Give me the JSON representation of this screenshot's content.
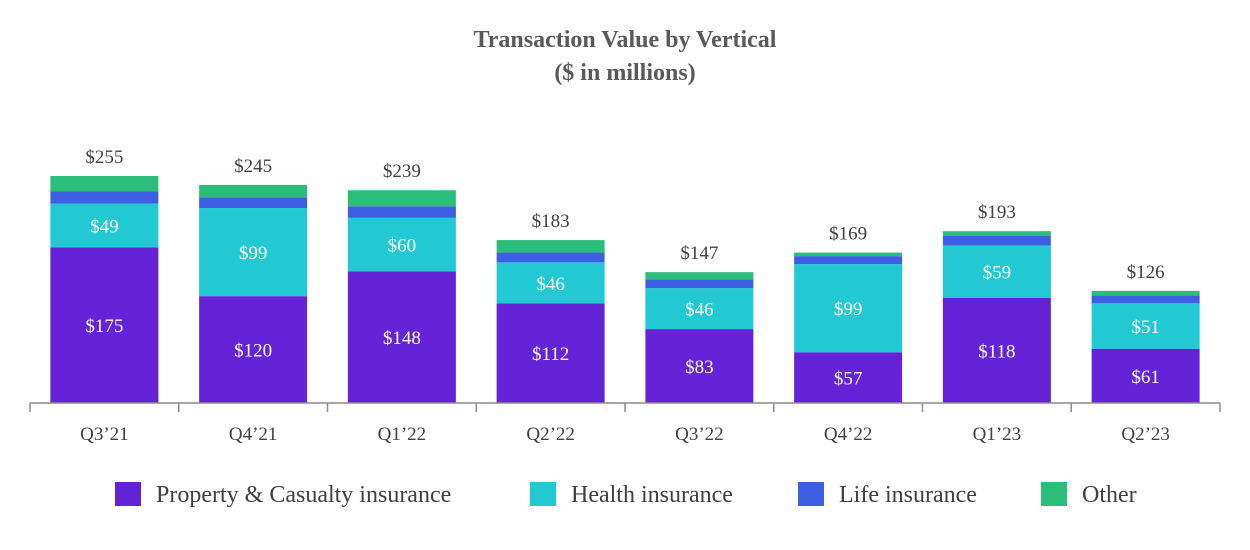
{
  "chart_data": {
    "type": "bar",
    "stacked": true,
    "title": "Transaction Value by Vertical",
    "subtitle": "($ in millions)",
    "categories": [
      "Q3’21",
      "Q4’21",
      "Q1’22",
      "Q2’22",
      "Q3’22",
      "Q4’22",
      "Q1’23",
      "Q2’23"
    ],
    "series": [
      {
        "name": "Property & Casualty insurance",
        "color": "#6523D8",
        "values": [
          175,
          120,
          148,
          112,
          83,
          57,
          118,
          61
        ],
        "labels": [
          "$175",
          "$120",
          "$148",
          "$112",
          "$83",
          "$57",
          "$118",
          "$61"
        ]
      },
      {
        "name": "Health insurance",
        "color": "#22C9D2",
        "values": [
          49,
          99,
          60,
          46,
          46,
          99,
          59,
          51
        ],
        "labels": [
          "$49",
          "$99",
          "$60",
          "$46",
          "$46",
          "$99",
          "$59",
          "$51"
        ]
      },
      {
        "name": "Life insurance",
        "color": "#3E5FE3",
        "values": [
          14,
          12,
          13,
          11,
          10,
          9,
          11,
          9
        ],
        "labels": [
          "",
          "",
          "",
          "",
          "",
          "",
          "",
          ""
        ]
      },
      {
        "name": "Other",
        "color": "#2BBE7A",
        "values": [
          17,
          14,
          18,
          14,
          8,
          4,
          5,
          5
        ],
        "labels": [
          "",
          "",
          "",
          "",
          "",
          "",
          "",
          ""
        ]
      }
    ],
    "totals": [
      255,
      245,
      239,
      183,
      147,
      169,
      193,
      126
    ],
    "total_labels": [
      "$255",
      "$245",
      "$239",
      "$183",
      "$147",
      "$169",
      "$193",
      "$126"
    ],
    "ylim": [
      0,
      260
    ],
    "grid": false,
    "legend": "bottom"
  }
}
